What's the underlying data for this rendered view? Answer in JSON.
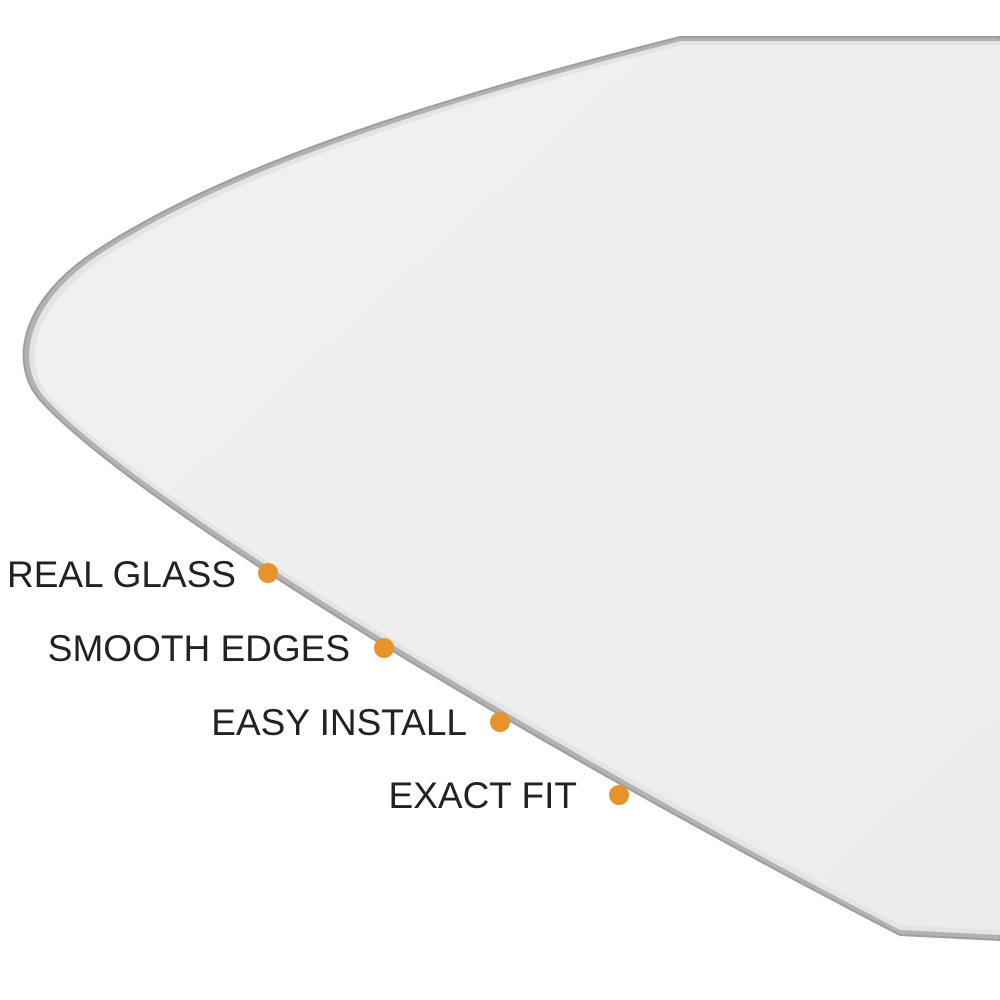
{
  "product": {
    "name": "mirror-glass",
    "glass_color": "#efefef",
    "edge_color": "#a9a9a9",
    "edge_highlight_color": "#e2e2e2"
  },
  "features": {
    "accent_color": "#e8922b",
    "items": [
      {
        "label": "REAL GLASS"
      },
      {
        "label": "SMOOTH EDGES"
      },
      {
        "label": "EASY INSTALL"
      },
      {
        "label": "EXACT FIT"
      }
    ]
  }
}
